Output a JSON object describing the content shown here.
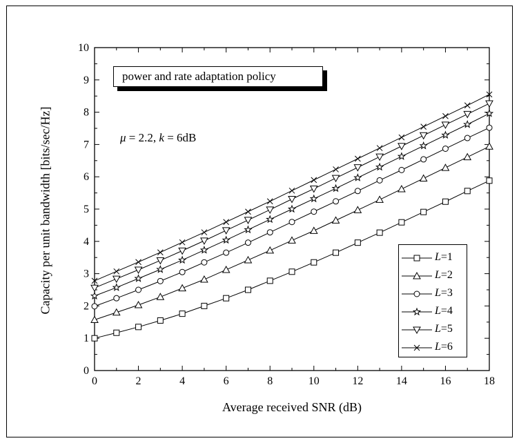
{
  "chart_data": {
    "type": "line",
    "title": "",
    "xlabel": "Average received SNR (dB)",
    "ylabel": "Capacity per unit bandwidth [bits/sec/Hz]",
    "xlim": [
      0,
      18
    ],
    "ylim": [
      0,
      10
    ],
    "x_ticks": [
      "0",
      "2",
      "4",
      "6",
      "8",
      "10",
      "12",
      "14",
      "16",
      "18"
    ],
    "y_ticks": [
      "0",
      "1",
      "2",
      "3",
      "4",
      "5",
      "6",
      "7",
      "8",
      "9",
      "10"
    ],
    "grid": false,
    "legend_position": "bottom-right",
    "annotation_box": "power and rate adaptation policy",
    "parameters": {
      "mu_symbol": "μ",
      "mu_value": " = 2.2, ",
      "k_symbol": "k",
      "k_value": " = 6dB"
    },
    "x": [
      0,
      1,
      2,
      3,
      4,
      5,
      6,
      7,
      8,
      9,
      10,
      11,
      12,
      13,
      14,
      15,
      16,
      17,
      18
    ],
    "series": [
      {
        "name": "L=1",
        "legend_italic": "L",
        "legend_value": "=1",
        "marker": "square",
        "values": [
          1.0,
          1.17,
          1.35,
          1.55,
          1.76,
          2.0,
          2.24,
          2.5,
          2.78,
          3.06,
          3.35,
          3.65,
          3.96,
          4.27,
          4.59,
          4.91,
          5.23,
          5.56,
          5.88
        ]
      },
      {
        "name": "L=2",
        "legend_italic": "L",
        "legend_value": "=2",
        "marker": "triangle-up",
        "values": [
          1.57,
          1.8,
          2.03,
          2.28,
          2.55,
          2.82,
          3.12,
          3.42,
          3.72,
          4.03,
          4.33,
          4.65,
          4.97,
          5.29,
          5.62,
          5.95,
          6.28,
          6.61,
          6.94
        ]
      },
      {
        "name": "L=3",
        "legend_italic": "L",
        "legend_value": "=3",
        "marker": "circle",
        "values": [
          1.99,
          2.24,
          2.5,
          2.77,
          3.05,
          3.35,
          3.65,
          3.96,
          4.28,
          4.6,
          4.92,
          5.24,
          5.56,
          5.89,
          6.21,
          6.54,
          6.87,
          7.2,
          7.52
        ]
      },
      {
        "name": "L=4",
        "legend_italic": "L",
        "legend_value": "=4",
        "marker": "star",
        "values": [
          2.31,
          2.57,
          2.85,
          3.13,
          3.42,
          3.73,
          4.04,
          4.36,
          4.68,
          5.0,
          5.32,
          5.64,
          5.97,
          6.3,
          6.63,
          6.96,
          7.29,
          7.62,
          7.96
        ]
      },
      {
        "name": "L=5",
        "legend_italic": "L",
        "legend_value": "=5",
        "marker": "triangle-down",
        "values": [
          2.56,
          2.84,
          3.12,
          3.41,
          3.71,
          4.02,
          4.34,
          4.66,
          4.98,
          5.31,
          5.63,
          5.96,
          6.29,
          6.62,
          6.95,
          7.28,
          7.61,
          7.94,
          8.27
        ]
      },
      {
        "name": "L=6",
        "legend_italic": "L",
        "legend_value": "=6",
        "marker": "x",
        "values": [
          2.78,
          3.07,
          3.36,
          3.66,
          3.97,
          4.28,
          4.6,
          4.92,
          5.24,
          5.57,
          5.9,
          6.23,
          6.56,
          6.89,
          7.22,
          7.55,
          7.88,
          8.21,
          8.55
        ]
      }
    ]
  }
}
